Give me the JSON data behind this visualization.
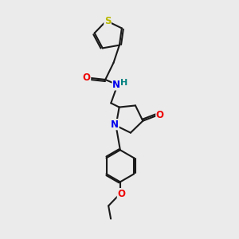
{
  "background_color": "#ebebeb",
  "bond_color": "#1a1a1a",
  "bond_width": 1.5,
  "atom_colors": {
    "S": "#b8b800",
    "N": "#0000ee",
    "O": "#ee0000",
    "H": "#008080",
    "C": "#1a1a1a"
  },
  "font_size_atom": 8.5
}
